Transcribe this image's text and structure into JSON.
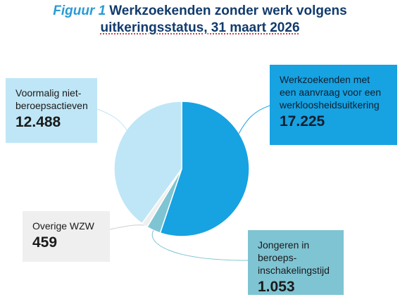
{
  "title": {
    "figure_label": "Figuur 1",
    "line1": "Werkzoekenden zonder werk volgens",
    "line2": "uitkeringsstatus, 31 maart 2026"
  },
  "chart_data": {
    "type": "pie",
    "title": "Figuur 1 Werkzoekenden zonder werk volgens uitkeringsstatus, 31 maart 2026",
    "slices": [
      {
        "label": "Werkzoekenden met een aanvraag voor een werkloosheidsuitkering",
        "value": 17225,
        "value_label": "17.225",
        "color": "#17a2e2"
      },
      {
        "label": "Jongeren in beroeps-inschakelingstijd",
        "value": 1053,
        "value_label": "1.053",
        "color": "#7fc4d3"
      },
      {
        "label": "Overige WZW",
        "value": 459,
        "value_label": "459",
        "color": "#efefef"
      },
      {
        "label": "Voormalig niet-beroepsactieven",
        "value": 12488,
        "value_label": "12.488",
        "color": "#bfe6f6"
      }
    ],
    "start_angle_deg": 0,
    "direction": "clockwise",
    "legend": "callout-boxes"
  },
  "labels": {
    "wl_line1": "Werkzoekenden met",
    "wl_line2": "een aanvraag voor een",
    "wl_line3": "werkloosheidsuitkering",
    "vn_line1": "Voormalig niet-",
    "vn_line2": "beroepsactieven",
    "ow_line1": "Overige WZW",
    "jb_line1": "Jongeren in",
    "jb_line2": "beroeps-",
    "jb_line3": "inschakelingstijd"
  }
}
